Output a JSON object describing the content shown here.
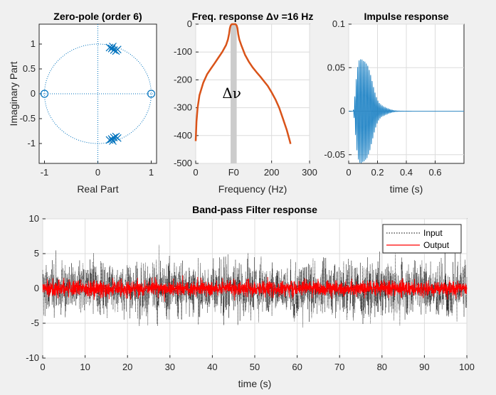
{
  "figure": {
    "background": "#f0f0f0"
  },
  "colors": {
    "matlab_blue": "#0072bd",
    "matlab_orange": "#d95319",
    "band_gray": "#cccccc",
    "output_red": "#ff0000",
    "input_black": "#000000"
  },
  "chart_data": [
    {
      "type": "scatter",
      "title": "Zero-pole (order 6)",
      "xlabel": "Real Part",
      "ylabel": "Imaginary Part",
      "xlim": [
        -1.1,
        1.1
      ],
      "ylim": [
        -1.4,
        1.4
      ],
      "xticks": [
        -1,
        0,
        1
      ],
      "yticks": [
        -1,
        -0.5,
        0,
        0.5,
        1
      ],
      "xtick_labels": [
        "-1",
        "0",
        "1"
      ],
      "ytick_labels": [
        "-1",
        "-0.5",
        "0",
        "0.5",
        "1"
      ],
      "grid": false,
      "unit_circle": true,
      "zeros": [
        [
          -1,
          0
        ],
        [
          1,
          0
        ]
      ],
      "poles": [
        [
          0.22,
          0.93
        ],
        [
          0.26,
          0.91
        ],
        [
          0.3,
          0.88
        ],
        [
          0.34,
          0.86
        ],
        [
          0.37,
          0.89
        ],
        [
          0.28,
          0.95
        ],
        [
          0.22,
          -0.93
        ],
        [
          0.26,
          -0.91
        ],
        [
          0.3,
          -0.88
        ],
        [
          0.34,
          -0.86
        ],
        [
          0.37,
          -0.89
        ],
        [
          0.28,
          -0.95
        ]
      ]
    },
    {
      "type": "line",
      "title": "Freq. response Δν =16 Hz",
      "xlabel": "Frequency (Hz)",
      "ylabel": "",
      "xlim": [
        0,
        300
      ],
      "ylim": [
        -500,
        0
      ],
      "xticks": [
        0,
        100,
        200,
        300
      ],
      "xtick_labels": [
        "0",
        "F0",
        "200",
        "300"
      ],
      "yticks": [
        -500,
        -400,
        -300,
        -200,
        -100,
        0
      ],
      "ytick_labels": [
        "-500",
        "-400",
        "-300",
        "-200",
        "-100",
        "0"
      ],
      "grid": true,
      "band": {
        "center": 100,
        "width": 16
      },
      "annotation": {
        "text": "Δν",
        "x": 95,
        "y": -265
      },
      "series": [
        {
          "x": [
            0,
            2,
            5,
            10,
            20,
            30,
            40,
            50,
            60,
            70,
            80,
            85,
            88,
            90,
            92,
            95,
            100,
            105,
            108,
            110,
            112,
            115,
            120,
            130,
            140,
            150,
            160,
            170,
            180,
            190,
            200,
            210,
            220,
            230,
            240,
            245,
            248,
            250
          ],
          "y": [
            -420,
            -350,
            -300,
            -255,
            -210,
            -180,
            -160,
            -140,
            -120,
            -100,
            -75,
            -55,
            -35,
            -15,
            -5,
            0,
            0,
            0,
            -5,
            -15,
            -35,
            -55,
            -75,
            -110,
            -135,
            -155,
            -172,
            -188,
            -205,
            -222,
            -245,
            -270,
            -300,
            -340,
            -380,
            -405,
            -420,
            -430
          ]
        }
      ]
    },
    {
      "type": "line",
      "title": "Impulse response",
      "xlabel": "time (s)",
      "ylabel": "",
      "xlim": [
        0,
        0.8
      ],
      "ylim": [
        -0.06,
        0.1
      ],
      "xticks": [
        0,
        0.2,
        0.4,
        0.6
      ],
      "xtick_labels": [
        "0",
        "0.2",
        "0.4",
        "0.6"
      ],
      "yticks": [
        -0.05,
        0,
        0.05,
        0.1
      ],
      "ytick_labels": [
        "-0.05",
        "0",
        "0.05",
        "0.1"
      ],
      "grid": true,
      "peak": 0.07,
      "peak_time": 0.09
    },
    {
      "type": "line",
      "title": "Band-pass Filter response",
      "xlabel": "time (s)",
      "ylabel": "",
      "xlim": [
        0,
        100
      ],
      "ylim": [
        -10,
        10
      ],
      "xticks": [
        0,
        10,
        20,
        30,
        40,
        50,
        60,
        70,
        80,
        90,
        100
      ],
      "xtick_labels": [
        "0",
        "10",
        "20",
        "30",
        "40",
        "50",
        "60",
        "70",
        "80",
        "90",
        "100"
      ],
      "yticks": [
        -10,
        -5,
        0,
        5,
        10
      ],
      "ytick_labels": [
        "-10",
        "-5",
        "0",
        "5",
        "10"
      ],
      "grid": true,
      "legend_position": "top-right",
      "series": [
        {
          "name": "Input",
          "style": "dotted",
          "amplitude": 9
        },
        {
          "name": "Output",
          "style": "solid",
          "amplitude": 2
        }
      ]
    }
  ]
}
